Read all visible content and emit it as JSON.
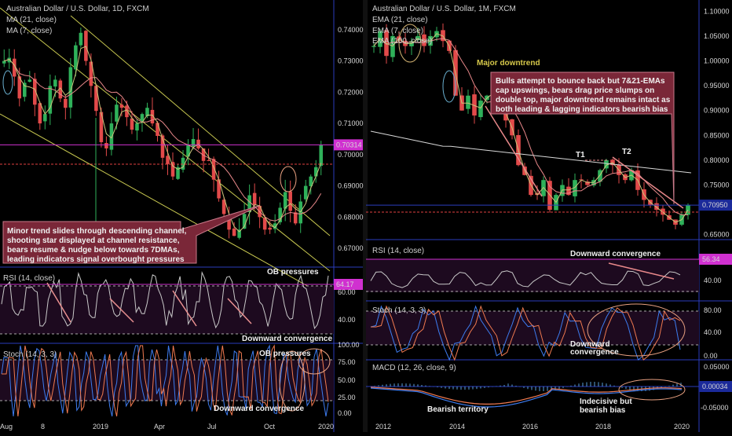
{
  "colors": {
    "background": "#000000",
    "panel_fill": "#1d0a1f",
    "candle_up": "#2fb15a",
    "candle_down": "#e24a4a",
    "ma21": "#e8888a",
    "ma7": "#c9c47a",
    "ema100": "#d8d8d8",
    "rsi_line": "#c9c9c9",
    "stoch_k": "#3d7cf0",
    "stoch_d": "#f07a50",
    "macd_line": "#3d7cf0",
    "signal_line": "#f07a50",
    "histogram": "#5aa0d8",
    "highlight_line": "#d030d0",
    "price_line": "#e04040",
    "pane_border": "#2a3dbd",
    "channel_line": "#c8c850",
    "annotation_ellipse": "#e8a080",
    "callout_bg": "#7a2738"
  },
  "left_chart": {
    "title": "Australian Dollar / U.S. Dollar, 1D, FXCM",
    "legend": [
      "MA (21, close)",
      "MA (7, close)"
    ],
    "price_axis": {
      "ticks": [
        "0.74000",
        "0.73000",
        "0.72000",
        "0.71000",
        "0.70000",
        "0.69000",
        "0.68000",
        "0.67000"
      ],
      "last_price": "0.70314"
    },
    "x_axis": [
      "Aug",
      "8",
      "2019",
      "Apr",
      "Jul",
      "Oct",
      "2020"
    ],
    "callout": [
      "Minor trend slides through descending channel,",
      "shooting star displayed at channel resistance,",
      "bears resume & nudge below towards 7DMAs,",
      "leading indicators signal overbought pressures"
    ],
    "rsi": {
      "label": "RSI (14, close)",
      "value": "64.17",
      "ticks": [
        "60.00",
        "40.00"
      ],
      "annotations": [
        "OB pressures",
        "Downward convergence"
      ]
    },
    "stoch": {
      "label": "Stoch (14, 3, 3)",
      "ticks": [
        "100.00",
        "75.00",
        "50.00",
        "25.00",
        "0.00"
      ],
      "annotations": [
        "OB pressures",
        "Downward convergence"
      ]
    }
  },
  "right_chart": {
    "title": "Australian Dollar / U.S. Dollar, 1M, FXCM",
    "legend": [
      "EMA (21, close)",
      "EMA (7, close)",
      "EMA (100, close)"
    ],
    "price_axis": {
      "ticks": [
        "1.10000",
        "1.05000",
        "1.00000",
        "0.95000",
        "0.90000",
        "0.85000",
        "0.80000",
        "0.75000",
        "0.65000"
      ],
      "last_price": "0.70950"
    },
    "x_axis": [
      "2012",
      "2014",
      "2016",
      "2018",
      "2020"
    ],
    "major_label": "Major downtrend",
    "tops": [
      "T1",
      "T2"
    ],
    "callout": [
      "Bulls attempt to bounce back but 7&21-EMAs",
      "cap upswings, bears drag price slumps on",
      "double top, major downtrend remains intact as",
      "both leading & lagging indicators bearish bias"
    ],
    "rsi": {
      "label": "RSI (14, close)",
      "value": "56.34",
      "ticks": [
        "40.00"
      ],
      "annotations": [
        "Downward convergence"
      ]
    },
    "stoch": {
      "label": "Stoch (14, 3, 3)",
      "ticks": [
        "80.00",
        "40.00",
        "0.00"
      ],
      "annotations": [
        "Downward",
        "convergence"
      ]
    },
    "macd": {
      "label": "MACD (12, 26, close, 9)",
      "value": "0.00034",
      "ticks": [
        "0.05000",
        "-0.05000"
      ],
      "annotations": [
        "Bearish territory",
        "Indecisive but",
        "bearish bias"
      ]
    }
  },
  "chart_data": [
    {
      "type": "candlestick",
      "title": "Australian Dollar / U.S. Dollar, 1D, FXCM",
      "timeframe": "1D",
      "ylim": [
        0.664,
        0.748
      ],
      "x_ticks": [
        "Aug",
        "8",
        "2019",
        "Apr",
        "Jul",
        "Oct",
        "2020"
      ],
      "series": [
        {
          "name": "MA (21, close)"
        },
        {
          "name": "MA (7, close)"
        }
      ],
      "closes_approx": [
        0.73,
        0.731,
        0.725,
        0.718,
        0.723,
        0.724,
        0.716,
        0.71,
        0.713,
        0.722,
        0.724,
        0.718,
        0.715,
        0.728,
        0.735,
        0.739,
        0.73,
        0.722,
        0.714,
        0.704,
        0.702,
        0.71,
        0.716,
        0.715,
        0.712,
        0.708,
        0.71,
        0.713,
        0.715,
        0.71,
        0.706,
        0.699,
        0.697,
        0.693,
        0.696,
        0.699,
        0.703,
        0.705,
        0.702,
        0.698,
        0.698,
        0.692,
        0.686,
        0.681,
        0.676,
        0.674,
        0.676,
        0.681,
        0.687,
        0.684,
        0.68,
        0.676,
        0.676,
        0.678,
        0.683,
        0.688,
        0.682,
        0.678,
        0.685,
        0.69,
        0.693,
        0.696,
        0.703
      ],
      "last_price": 0.70314,
      "rsi": {
        "label": "RSI (14, close)",
        "last": 64.17,
        "levels": [
          70,
          30
        ]
      },
      "stoch": {
        "label": "Stoch (14, 3, 3)",
        "levels": [
          80,
          20
        ]
      }
    },
    {
      "type": "candlestick",
      "title": "Australian Dollar / U.S. Dollar, 1M, FXCM",
      "timeframe": "1M",
      "ylim": [
        0.64,
        1.11
      ],
      "x_ticks": [
        "2012",
        "2014",
        "2016",
        "2018",
        "2020"
      ],
      "series": [
        {
          "name": "EMA (21, close)"
        },
        {
          "name": "EMA (7, close)"
        },
        {
          "name": "EMA (100, close)"
        }
      ],
      "closes_approx": [
        1.03,
        1.06,
        1.01,
        1.05,
        1.04,
        1.03,
        1.04,
        1.05,
        1.03,
        1.05,
        1.06,
        1.04,
        1.02,
        0.93,
        0.9,
        0.93,
        0.89,
        0.92,
        0.93,
        0.94,
        0.91,
        0.88,
        0.85,
        0.79,
        0.77,
        0.73,
        0.73,
        0.76,
        0.7,
        0.73,
        0.75,
        0.73,
        0.76,
        0.76,
        0.75,
        0.76,
        0.78,
        0.8,
        0.79,
        0.77,
        0.76,
        0.78,
        0.74,
        0.72,
        0.71,
        0.7,
        0.69,
        0.68,
        0.67,
        0.69,
        0.7095
      ],
      "last_price": 0.7095,
      "rsi": {
        "label": "RSI (14, close)",
        "last": 56.34
      },
      "stoch": {
        "label": "Stoch (14, 3, 3)"
      },
      "macd": {
        "label": "MACD (12, 26, close, 9)",
        "last": 0.00034
      }
    }
  ]
}
